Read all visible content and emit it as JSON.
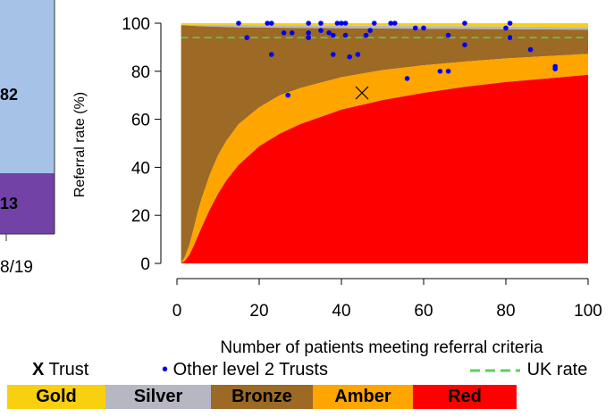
{
  "left_panel": {
    "upper_value": "82",
    "lower_value": "13",
    "year_label": "8/19",
    "colors": {
      "upper": "#a6c3e7",
      "lower": "#7342a6"
    }
  },
  "chart_data": {
    "type": "area",
    "xlabel": "Number of patients meeting referral criteria",
    "ylabel": "Referral rate (%)",
    "xlim": [
      0,
      100
    ],
    "ylim": [
      0,
      100
    ],
    "x_ticks": [
      "0",
      "20",
      "40",
      "60",
      "80",
      "100"
    ],
    "y_ticks": [
      "0",
      "20",
      "40",
      "60",
      "80",
      "100"
    ],
    "grid": false,
    "bands": [
      {
        "name": "Gold",
        "color": "#f9d00f"
      },
      {
        "name": "Silver",
        "color": "#b7b7c4"
      },
      {
        "name": "Bronze",
        "color": "#9c6a24"
      },
      {
        "name": "Amber",
        "color": "#ffa500"
      },
      {
        "name": "Red",
        "color": "#ff0000"
      }
    ],
    "band_boundaries": {
      "x": [
        1,
        2,
        3,
        4,
        5,
        6,
        8,
        10,
        12,
        15,
        20,
        25,
        30,
        40,
        50,
        60,
        70,
        80,
        90,
        100
      ],
      "red_upper": [
        0,
        1.2,
        3.5,
        7,
        11,
        15,
        22.5,
        29,
        34.5,
        41,
        48.8,
        54,
        58,
        64,
        68,
        71,
        73.5,
        75.5,
        77,
        78.5
      ],
      "amber_upper": [
        0,
        3,
        7.5,
        14,
        21,
        27,
        37,
        45,
        51,
        58,
        65,
        70,
        73,
        77.5,
        80.5,
        82.5,
        84,
        85.3,
        86.3,
        87.2
      ],
      "bronze_upper": [
        99.2,
        99.1,
        99.0,
        98.9,
        98.8,
        98.7,
        98.6,
        98.5,
        98.4,
        98.3,
        98.2,
        98.1,
        98.0,
        97.9,
        97.8,
        97.7,
        97.6,
        97.5,
        97.4,
        97.3
      ],
      "silver_upper": [
        99.3,
        99.3,
        99.3,
        99.3,
        99.3,
        99.3,
        99.3,
        99.3,
        99.3,
        99.3,
        99.2,
        99.2,
        99.1,
        99.0,
        98.9,
        98.8,
        98.7,
        98.6,
        98.5,
        98.4
      ]
    },
    "uk_rate": 94,
    "trust": {
      "x": 45,
      "y": 71
    },
    "other_trusts": [
      [
        15,
        100
      ],
      [
        17,
        94
      ],
      [
        22,
        100
      ],
      [
        23,
        87
      ],
      [
        23,
        100
      ],
      [
        26,
        96
      ],
      [
        27,
        70
      ],
      [
        28,
        96
      ],
      [
        32,
        100
      ],
      [
        32,
        96
      ],
      [
        32,
        94
      ],
      [
        35,
        100
      ],
      [
        35,
        97
      ],
      [
        37,
        96
      ],
      [
        38,
        95
      ],
      [
        38,
        87
      ],
      [
        39,
        100
      ],
      [
        40,
        100
      ],
      [
        41,
        95
      ],
      [
        41,
        100
      ],
      [
        42,
        86
      ],
      [
        44,
        87
      ],
      [
        46,
        95
      ],
      [
        47,
        97
      ],
      [
        48,
        100
      ],
      [
        52,
        100
      ],
      [
        53,
        100
      ],
      [
        56,
        77
      ],
      [
        58,
        98
      ],
      [
        60,
        98
      ],
      [
        64,
        80
      ],
      [
        66,
        80
      ],
      [
        66,
        95
      ],
      [
        70,
        100
      ],
      [
        70,
        91
      ],
      [
        80,
        98
      ],
      [
        81,
        100
      ],
      [
        81,
        94
      ],
      [
        86,
        89
      ],
      [
        92,
        82
      ],
      [
        92,
        81
      ]
    ],
    "colors": {
      "points": "#0000ee",
      "uk_rate": "#5ccf5c",
      "trust_marker": "#000000"
    }
  },
  "legend": {
    "trust_symbol": "X",
    "trust_label": "Trust",
    "others_symbol": "•",
    "others_label": "Other level 2 Trusts",
    "uk_rate_label": "UK rate",
    "band_labels": [
      "Gold",
      "Silver",
      "Bronze",
      "Amber",
      "Red"
    ]
  }
}
